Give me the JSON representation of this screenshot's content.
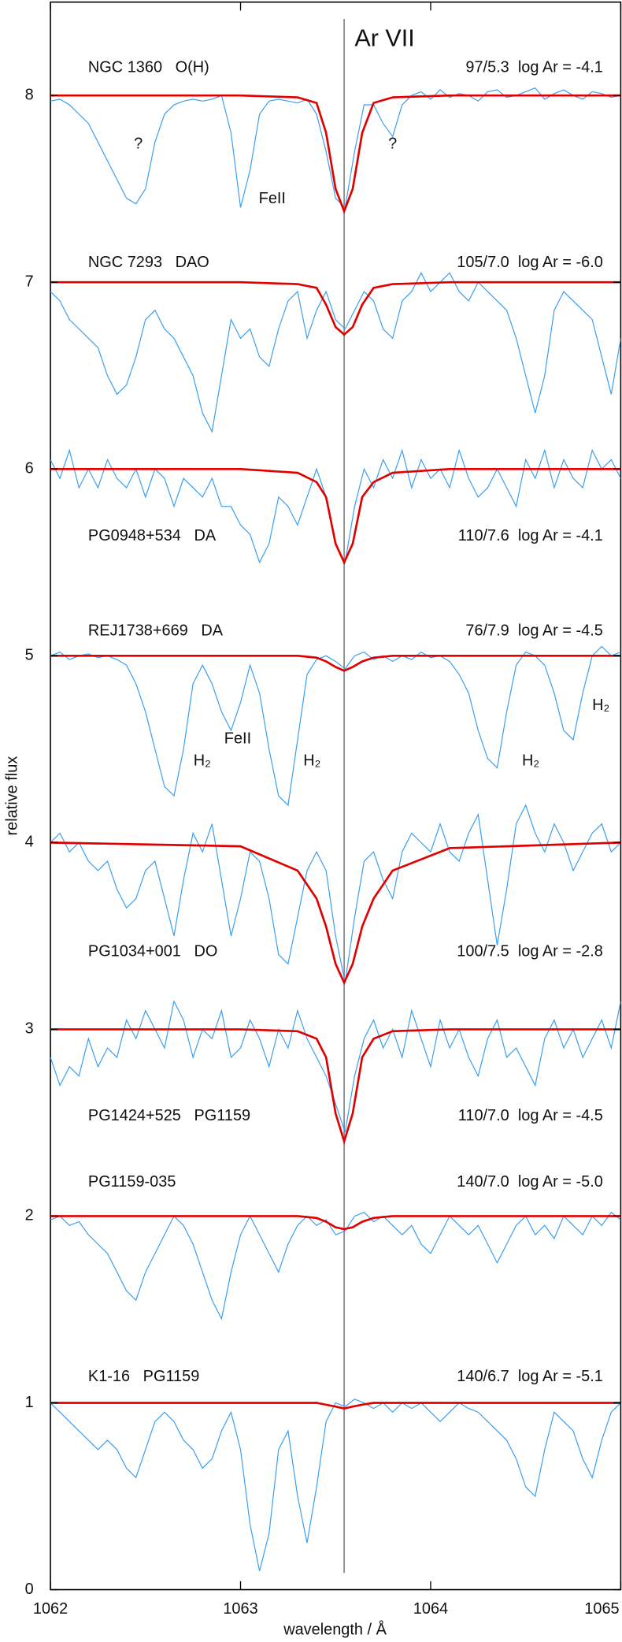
{
  "chart_data": {
    "type": "line",
    "xlabel": "wavelength / Å",
    "ylabel": "relative flux",
    "xlim": [
      1062,
      1065
    ],
    "ylim": [
      0,
      8.5
    ],
    "xticks": [
      1062,
      1063,
      1064,
      1065
    ],
    "yticks": [
      0,
      1,
      2,
      3,
      4,
      5,
      6,
      7,
      8
    ],
    "line_label": "Ar VII",
    "line_x": 1063.545,
    "observed_color": "#3a9ef0",
    "model_color": "#e00000",
    "line_color": "#888888",
    "x": [
      1062.0,
      1062.05,
      1062.1,
      1062.15,
      1062.2,
      1062.25,
      1062.3,
      1062.35,
      1062.4,
      1062.45,
      1062.5,
      1062.55,
      1062.6,
      1062.65,
      1062.7,
      1062.75,
      1062.8,
      1062.85,
      1062.9,
      1062.95,
      1063.0,
      1063.05,
      1063.1,
      1063.15,
      1063.2,
      1063.25,
      1063.3,
      1063.35,
      1063.4,
      1063.45,
      1063.5,
      1063.55,
      1063.6,
      1063.65,
      1063.7,
      1063.75,
      1063.8,
      1063.85,
      1063.9,
      1063.95,
      1064.0,
      1064.05,
      1064.1,
      1064.15,
      1064.2,
      1064.25,
      1064.3,
      1064.35,
      1064.4,
      1064.45,
      1064.5,
      1064.55,
      1064.6,
      1064.65,
      1064.7,
      1064.75,
      1064.8,
      1064.85,
      1064.9,
      1064.95,
      1065.0
    ],
    "model_x": [
      1062,
      1063.0,
      1063.3,
      1063.4,
      1063.45,
      1063.5,
      1063.545,
      1063.59,
      1063.64,
      1063.7,
      1063.8,
      1064.1,
      1065
    ],
    "spectra": [
      {
        "name": "NGC 1360   O(H)",
        "params": "97/5.3  log Ar = -4.1",
        "annotations": [
          "?",
          "FeII",
          "?"
        ],
        "observed": [
          7.97,
          7.98,
          7.95,
          7.9,
          7.85,
          7.75,
          7.65,
          7.55,
          7.45,
          7.42,
          7.5,
          7.75,
          7.9,
          7.95,
          7.97,
          7.98,
          7.97,
          7.98,
          8.0,
          7.8,
          7.4,
          7.6,
          7.9,
          7.97,
          7.98,
          7.97,
          7.96,
          7.98,
          7.9,
          7.7,
          7.45,
          7.4,
          7.7,
          7.95,
          7.95,
          7.85,
          7.78,
          7.95,
          8.0,
          8.02,
          7.98,
          8.03,
          7.99,
          8.01,
          8.0,
          7.97,
          8.02,
          8.03,
          7.99,
          8.0,
          8.02,
          8.04,
          7.98,
          8.01,
          8.03,
          8.0,
          7.98,
          8.02,
          8.01,
          7.99,
          8.0
        ],
        "model": [
          8,
          8,
          7.99,
          7.96,
          7.8,
          7.5,
          7.38,
          7.5,
          7.8,
          7.96,
          7.99,
          8,
          8
        ]
      },
      {
        "name": "NGC 7293   DAO",
        "params": "105/7.0  log Ar = -6.0",
        "annotations": [],
        "observed": [
          6.95,
          6.9,
          6.8,
          6.75,
          6.7,
          6.65,
          6.5,
          6.4,
          6.45,
          6.6,
          6.8,
          6.85,
          6.75,
          6.7,
          6.6,
          6.5,
          6.3,
          6.2,
          6.5,
          6.8,
          6.7,
          6.75,
          6.6,
          6.55,
          6.75,
          6.9,
          6.95,
          6.7,
          6.85,
          6.95,
          6.8,
          6.75,
          6.85,
          6.95,
          6.9,
          6.75,
          6.7,
          6.9,
          6.95,
          7.05,
          6.95,
          7.0,
          7.05,
          6.95,
          6.9,
          7.0,
          6.95,
          6.9,
          6.85,
          6.7,
          6.5,
          6.3,
          6.5,
          6.85,
          6.95,
          6.9,
          6.85,
          6.8,
          6.6,
          6.4,
          6.7
        ],
        "model": [
          7,
          7,
          6.99,
          6.97,
          6.88,
          6.76,
          6.72,
          6.76,
          6.88,
          6.97,
          6.99,
          7,
          7
        ]
      },
      {
        "name": "PG0948+534   DA",
        "params": "110/7.6  log Ar = -4.1",
        "annotations": [],
        "observed": [
          6.05,
          5.95,
          6.1,
          5.9,
          6.0,
          5.9,
          6.05,
          5.95,
          5.9,
          6.0,
          5.85,
          6.0,
          5.95,
          5.8,
          5.95,
          5.9,
          5.85,
          5.95,
          5.8,
          5.8,
          5.7,
          5.65,
          5.5,
          5.6,
          5.85,
          5.8,
          5.7,
          5.85,
          6.0,
          5.85,
          5.6,
          5.5,
          5.8,
          6.0,
          5.9,
          6.05,
          5.95,
          6.1,
          5.9,
          6.05,
          5.95,
          6.0,
          5.9,
          6.1,
          5.95,
          5.85,
          5.9,
          6.0,
          5.9,
          5.8,
          6.05,
          5.95,
          6.1,
          5.9,
          6.05,
          5.95,
          5.9,
          6.1,
          6.0,
          6.05,
          5.95
        ],
        "model": [
          6,
          6,
          5.98,
          5.93,
          5.85,
          5.6,
          5.5,
          5.6,
          5.85,
          5.93,
          5.98,
          6,
          6
        ]
      },
      {
        "name": "REJ1738+669   DA",
        "params": "76/7.9  log Ar = -4.5",
        "annotations": [
          "H₂",
          "FeII",
          "H₂",
          "H₂",
          "H₂"
        ],
        "observed": [
          5.0,
          5.02,
          4.98,
          5.0,
          5.01,
          4.99,
          5.0,
          4.98,
          4.95,
          4.85,
          4.7,
          4.5,
          4.3,
          4.25,
          4.5,
          4.85,
          4.95,
          4.85,
          4.7,
          4.6,
          4.75,
          4.95,
          4.8,
          4.5,
          4.25,
          4.2,
          4.55,
          4.9,
          4.98,
          5.0,
          4.97,
          4.93,
          5.0,
          5.02,
          4.98,
          5.0,
          4.97,
          5.0,
          4.98,
          5.02,
          4.99,
          5.0,
          4.97,
          4.9,
          4.8,
          4.6,
          4.45,
          4.4,
          4.7,
          4.95,
          5.02,
          5.0,
          4.95,
          4.8,
          4.6,
          4.55,
          4.8,
          5.0,
          5.05,
          5.0,
          5.02
        ],
        "model": [
          5,
          5,
          5,
          4.99,
          4.97,
          4.94,
          4.92,
          4.94,
          4.97,
          4.99,
          5,
          5,
          5
        ]
      },
      {
        "name": "PG1034+001   DO",
        "params": "100/7.5  log Ar = -2.8",
        "annotations": [],
        "observed": [
          4.0,
          4.05,
          3.95,
          4.0,
          3.9,
          3.85,
          3.9,
          3.75,
          3.65,
          3.7,
          3.85,
          3.9,
          3.7,
          3.5,
          3.8,
          4.05,
          3.95,
          4.1,
          3.8,
          3.5,
          3.7,
          3.95,
          3.9,
          3.7,
          3.4,
          3.35,
          3.6,
          3.85,
          3.95,
          3.85,
          3.5,
          3.25,
          3.6,
          3.9,
          3.95,
          3.8,
          3.7,
          3.95,
          4.05,
          4.0,
          3.95,
          4.1,
          3.95,
          3.9,
          4.05,
          4.15,
          3.8,
          3.45,
          3.75,
          4.1,
          4.2,
          4.05,
          3.95,
          4.1,
          4.0,
          3.85,
          3.95,
          4.05,
          4.1,
          3.95,
          4.0
        ],
        "model": [
          4,
          3.98,
          3.85,
          3.7,
          3.55,
          3.35,
          3.25,
          3.35,
          3.55,
          3.7,
          3.85,
          3.97,
          4
        ]
      },
      {
        "name": "PG1424+525   PG1159",
        "params": "110/7.0  log Ar = -4.5",
        "annotations": [],
        "observed": [
          2.85,
          2.7,
          2.8,
          2.75,
          2.95,
          2.8,
          2.9,
          2.85,
          3.05,
          2.95,
          3.1,
          3.0,
          2.9,
          3.15,
          3.05,
          2.85,
          3.0,
          2.95,
          3.1,
          2.85,
          2.9,
          3.05,
          2.95,
          2.8,
          3.0,
          2.9,
          3.1,
          2.95,
          2.85,
          2.75,
          2.6,
          2.45,
          2.75,
          2.95,
          3.05,
          2.9,
          3.0,
          2.85,
          3.1,
          2.95,
          2.8,
          3.05,
          2.9,
          3.0,
          2.85,
          2.75,
          2.95,
          3.05,
          2.85,
          2.9,
          2.8,
          2.7,
          2.95,
          3.05,
          2.9,
          3.0,
          2.85,
          2.95,
          3.05,
          2.9,
          3.15
        ],
        "model": [
          3,
          3,
          2.99,
          2.95,
          2.85,
          2.55,
          2.4,
          2.55,
          2.85,
          2.95,
          2.99,
          3,
          3
        ]
      },
      {
        "name": "PG1159-035",
        "params": "140/7.0  log Ar = -5.0",
        "annotations": [],
        "observed": [
          1.98,
          2.0,
          1.95,
          1.97,
          1.9,
          1.85,
          1.8,
          1.7,
          1.6,
          1.55,
          1.7,
          1.8,
          1.9,
          2.0,
          1.95,
          1.85,
          1.7,
          1.55,
          1.45,
          1.7,
          1.9,
          2.0,
          1.9,
          1.8,
          1.7,
          1.85,
          1.95,
          2.0,
          1.95,
          1.98,
          1.9,
          1.92,
          2.0,
          2.02,
          1.97,
          2.0,
          1.95,
          1.9,
          1.95,
          1.85,
          1.8,
          1.9,
          2.0,
          1.95,
          1.9,
          1.95,
          1.85,
          1.75,
          1.85,
          1.95,
          2.0,
          1.9,
          1.95,
          1.88,
          2.0,
          1.95,
          1.9,
          2.0,
          1.95,
          2.02,
          1.98
        ],
        "model": [
          2,
          2,
          2,
          1.99,
          1.97,
          1.94,
          1.93,
          1.94,
          1.97,
          1.99,
          2,
          2,
          2
        ]
      },
      {
        "name": "K1-16   PG1159",
        "params": "140/6.7  log Ar = -5.1",
        "annotations": [],
        "observed": [
          1.0,
          0.95,
          0.9,
          0.85,
          0.8,
          0.75,
          0.8,
          0.75,
          0.65,
          0.6,
          0.75,
          0.9,
          0.95,
          0.9,
          0.8,
          0.75,
          0.65,
          0.7,
          0.85,
          0.95,
          0.75,
          0.35,
          0.1,
          0.3,
          0.75,
          0.85,
          0.5,
          0.25,
          0.55,
          0.9,
          1.0,
          0.98,
          1.02,
          1.0,
          0.97,
          1.0,
          0.95,
          1.0,
          0.97,
          1.0,
          0.95,
          0.9,
          0.95,
          1.0,
          0.97,
          0.95,
          0.9,
          0.85,
          0.8,
          0.7,
          0.55,
          0.5,
          0.75,
          0.95,
          0.9,
          0.85,
          0.7,
          0.6,
          0.8,
          0.95,
          1.0
        ],
        "model": [
          1,
          1,
          1,
          1,
          0.99,
          0.98,
          0.97,
          0.98,
          0.99,
          1,
          1,
          1,
          1
        ]
      }
    ]
  }
}
